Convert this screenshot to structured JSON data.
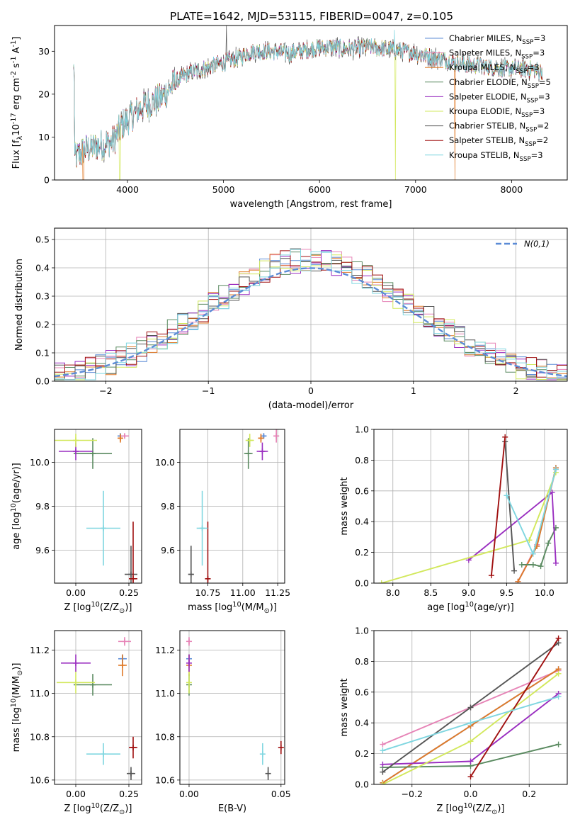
{
  "title": "PLATE=1642, MJD=53115, FIBERID=0047, z=0.105",
  "models": [
    {
      "label": "Chabrier MILES, N<SSP>=3",
      "color": "#5b8bd6"
    },
    {
      "label": "Salpeter MILES, N<SSP>=3",
      "color": "#e683b6"
    },
    {
      "label": "Kroupa MILES, N<SSP>=3",
      "color": "#e07a28"
    },
    {
      "label": "Chabrier ELODIE, N<SSP>=5",
      "color": "#5a8a60"
    },
    {
      "label": "Salpeter ELODIE, N<SSP>=3",
      "color": "#9a2ec0"
    },
    {
      "label": "Kroupa ELODIE, N<SSP>=3",
      "color": "#d2e85c"
    },
    {
      "label": "Chabrier STELIB, N<SSP>=2",
      "color": "#555555"
    },
    {
      "label": "Salpeter STELIB, N<SSP>=2",
      "color": "#a01010"
    },
    {
      "label": "Kroupa STELIB, N<SSP>=3",
      "color": "#7fd6e0"
    }
  ],
  "chart_data": [
    {
      "id": "spectrum",
      "type": "line",
      "xlabel": "wavelength [Angstrom, rest frame]",
      "ylabel": "Flux [f<λ>10<-17> erg cm<-2> s<-1> A<-1>]",
      "xlim": [
        3240,
        8580
      ],
      "ylim": [
        0,
        36
      ],
      "xticks": [
        4000,
        5000,
        6000,
        7000,
        8000
      ],
      "yticks": [
        0,
        10,
        20,
        30
      ],
      "grid": false,
      "legend_position": "top-right",
      "continuum": [
        [
          3450,
          5
        ],
        [
          3550,
          7
        ],
        [
          3700,
          8
        ],
        [
          3850,
          9
        ],
        [
          3950,
          13
        ],
        [
          4050,
          15
        ],
        [
          4150,
          17
        ],
        [
          4250,
          18
        ],
        [
          4350,
          19
        ],
        [
          4500,
          23
        ],
        [
          4650,
          25
        ],
        [
          4800,
          26
        ],
        [
          4950,
          27
        ],
        [
          5100,
          28
        ],
        [
          5200,
          29
        ],
        [
          5300,
          30
        ],
        [
          5500,
          30
        ],
        [
          5700,
          29.5
        ],
        [
          5900,
          30.5
        ],
        [
          6100,
          31
        ],
        [
          6300,
          30.5
        ],
        [
          6500,
          31
        ],
        [
          6700,
          30.5
        ],
        [
          6900,
          30
        ],
        [
          7100,
          29
        ],
        [
          7300,
          28
        ],
        [
          7500,
          27
        ],
        [
          7700,
          26.5
        ],
        [
          7900,
          26
        ],
        [
          8100,
          26
        ],
        [
          8300,
          25.5
        ]
      ],
      "dropouts": [
        [
          3540,
          0
        ],
        [
          3920,
          0
        ],
        [
          6790,
          0
        ],
        [
          7410,
          0
        ]
      ],
      "spikes_up": [
        [
          5030,
          36
        ],
        [
          6780,
          35
        ]
      ]
    },
    {
      "id": "residuals",
      "type": "histogram",
      "xlabel": "(data-model)/error",
      "ylabel": "Normed distribution",
      "xlim": [
        -2.5,
        2.5
      ],
      "ylim": [
        0,
        0.54
      ],
      "xticks": [
        -2,
        -1,
        0,
        1,
        2
      ],
      "yticks": [
        0.0,
        0.1,
        0.2,
        0.3,
        0.4,
        0.5
      ],
      "grid": true,
      "legend_position": "top-right",
      "reference_label": "N(0,1)",
      "reference_color": "#5b8bd6",
      "bin_width": 0.1
    },
    {
      "id": "age-vs-Z",
      "type": "scatter",
      "xlabel": "Z [log<10>(Z/Z<⊙>)]",
      "ylabel": "age  [log<10>(age/yr)]",
      "xlim": [
        -0.1,
        0.31
      ],
      "ylim": [
        9.45,
        10.15
      ],
      "xticks": [
        0.0,
        0.25
      ],
      "yticks": [
        9.6,
        9.8,
        10.0
      ],
      "grid": true,
      "points": [
        {
          "m": 0,
          "x": 0.21,
          "y": 10.12,
          "xe": 0.01,
          "ye": 0.01
        },
        {
          "m": 1,
          "x": 0.23,
          "y": 10.12,
          "xe": 0.02,
          "ye": 0.01
        },
        {
          "m": 2,
          "x": 0.21,
          "y": 10.11,
          "xe": 0.01,
          "ye": 0.02
        },
        {
          "m": 3,
          "x": 0.08,
          "y": 10.04,
          "xe": 0.09,
          "ye": 0.07
        },
        {
          "m": 4,
          "x": 0.0,
          "y": 10.05,
          "xe": 0.08,
          "ye": 0.04
        },
        {
          "m": 5,
          "x": 0.0,
          "y": 10.1,
          "xe": 0.1,
          "ye": 0.03
        },
        {
          "m": 6,
          "x": 0.26,
          "y": 9.49,
          "xe": 0.03,
          "ye": 0.13
        },
        {
          "m": 7,
          "x": 0.27,
          "y": 9.47,
          "xe": 0.02,
          "ye": 0.26
        },
        {
          "m": 8,
          "x": 0.13,
          "y": 9.7,
          "xe": 0.08,
          "ye": 0.17
        }
      ]
    },
    {
      "id": "age-vs-mass",
      "type": "scatter",
      "xlabel": "mass [log<10>(M/M<⊙>)]",
      "ylabel": "",
      "xlim": [
        10.55,
        11.3
      ],
      "ylim": [
        9.45,
        10.15
      ],
      "xticks": [
        10.75,
        11.0,
        11.25
      ],
      "yticks": [
        9.6,
        9.8,
        10.0
      ],
      "grid": true,
      "points": [
        {
          "m": 0,
          "x": 11.15,
          "y": 10.12,
          "xe": 0.02,
          "ye": 0.01
        },
        {
          "m": 1,
          "x": 11.24,
          "y": 10.12,
          "xe": 0.02,
          "ye": 0.03
        },
        {
          "m": 2,
          "x": 11.13,
          "y": 10.11,
          "xe": 0.02,
          "ye": 0.02
        },
        {
          "m": 3,
          "x": 11.04,
          "y": 10.04,
          "xe": 0.03,
          "ye": 0.07
        },
        {
          "m": 4,
          "x": 11.14,
          "y": 10.05,
          "xe": 0.04,
          "ye": 0.04
        },
        {
          "m": 5,
          "x": 11.05,
          "y": 10.1,
          "xe": 0.03,
          "ye": 0.03
        },
        {
          "m": 6,
          "x": 10.63,
          "y": 9.49,
          "xe": 0.02,
          "ye": 0.13
        },
        {
          "m": 7,
          "x": 10.75,
          "y": 9.47,
          "xe": 0.02,
          "ye": 0.26
        },
        {
          "m": 8,
          "x": 10.71,
          "y": 9.7,
          "xe": 0.04,
          "ye": 0.17
        }
      ]
    },
    {
      "id": "massweight-vs-age",
      "type": "line",
      "xlabel": "age  [log<10>(age/yr)]",
      "ylabel": "mass weight",
      "xlim": [
        7.75,
        10.3
      ],
      "ylim": [
        0,
        1
      ],
      "xticks": [
        8.0,
        8.5,
        9.0,
        9.5,
        10.0
      ],
      "yticks": [
        0.0,
        0.2,
        0.4,
        0.6,
        0.8,
        1.0
      ],
      "grid": true,
      "series": [
        {
          "m": 0,
          "x": [
            9.65,
            9.9,
            10.15
          ],
          "y": [
            0.01,
            0.24,
            0.75
          ]
        },
        {
          "m": 1,
          "x": [
            9.65,
            9.9,
            10.15
          ],
          "y": [
            0.01,
            0.25,
            0.74
          ]
        },
        {
          "m": 2,
          "x": [
            9.65,
            9.9,
            10.15
          ],
          "y": [
            0.01,
            0.24,
            0.75
          ]
        },
        {
          "m": 3,
          "x": [
            9.7,
            9.85,
            9.95,
            10.05,
            10.15
          ],
          "y": [
            0.12,
            0.12,
            0.11,
            0.26,
            0.36
          ]
        },
        {
          "m": 4,
          "x": [
            9.0,
            10.1,
            10.15
          ],
          "y": [
            0.15,
            0.59,
            0.13
          ]
        },
        {
          "m": 5,
          "x": [
            7.85,
            9.8,
            10.15
          ],
          "y": [
            0.0,
            0.28,
            0.72
          ]
        },
        {
          "m": 6,
          "x": [
            9.48,
            9.6
          ],
          "y": [
            0.92,
            0.08
          ]
        },
        {
          "m": 7,
          "x": [
            9.3,
            9.48
          ],
          "y": [
            0.05,
            0.95
          ]
        },
        {
          "m": 8,
          "x": [
            9.5,
            9.85,
            10.15
          ],
          "y": [
            0.57,
            0.19,
            0.74
          ]
        }
      ]
    },
    {
      "id": "mass-vs-Z",
      "type": "scatter",
      "xlabel": "Z [log<10>(Z/Z<⊙>)]",
      "ylabel": "mass [log<10>(M/M<⊙>)]",
      "xlim": [
        -0.1,
        0.31
      ],
      "ylim": [
        10.58,
        11.29
      ],
      "xticks": [
        0.0,
        0.25
      ],
      "yticks": [
        10.6,
        10.8,
        11.0,
        11.2
      ],
      "grid": true,
      "points": [
        {
          "m": 0,
          "x": 0.22,
          "y": 11.16,
          "xe": 0.02,
          "ye": 0.02
        },
        {
          "m": 1,
          "x": 0.23,
          "y": 11.24,
          "xe": 0.03,
          "ye": 0.02
        },
        {
          "m": 2,
          "x": 0.22,
          "y": 11.13,
          "xe": 0.02,
          "ye": 0.05
        },
        {
          "m": 3,
          "x": 0.08,
          "y": 11.04,
          "xe": 0.09,
          "ye": 0.05
        },
        {
          "m": 4,
          "x": 0.0,
          "y": 11.14,
          "xe": 0.07,
          "ye": 0.04
        },
        {
          "m": 5,
          "x": 0.0,
          "y": 11.05,
          "xe": 0.09,
          "ye": 0.05
        },
        {
          "m": 6,
          "x": 0.26,
          "y": 10.63,
          "xe": 0.02,
          "ye": 0.03
        },
        {
          "m": 7,
          "x": 0.27,
          "y": 10.75,
          "xe": 0.02,
          "ye": 0.05
        },
        {
          "m": 8,
          "x": 0.13,
          "y": 10.72,
          "xe": 0.08,
          "ye": 0.05
        }
      ]
    },
    {
      "id": "mass-vs-ebv",
      "type": "scatter",
      "xlabel": "E(B-V)",
      "ylabel": "",
      "xlim": [
        -0.005,
        0.052
      ],
      "ylim": [
        10.58,
        11.29
      ],
      "xticks": [
        0.0,
        0.05
      ],
      "yticks": [
        10.6,
        10.8,
        11.0,
        11.2
      ],
      "grid": true,
      "points": [
        {
          "m": 0,
          "x": 0.0,
          "y": 11.16,
          "xe": 0.0,
          "ye": 0.02
        },
        {
          "m": 1,
          "x": 0.0,
          "y": 11.24,
          "xe": 0.0,
          "ye": 0.02
        },
        {
          "m": 2,
          "x": 0.0,
          "y": 11.13,
          "xe": 0.0,
          "ye": 0.05
        },
        {
          "m": 3,
          "x": 0.0,
          "y": 11.04,
          "xe": 0.0,
          "ye": 0.05
        },
        {
          "m": 4,
          "x": 0.0,
          "y": 11.14,
          "xe": 0.0,
          "ye": 0.04
        },
        {
          "m": 5,
          "x": 0.0,
          "y": 11.05,
          "xe": 0.0,
          "ye": 0.05
        },
        {
          "m": 6,
          "x": 0.043,
          "y": 10.63,
          "xe": 0.0,
          "ye": 0.03
        },
        {
          "m": 7,
          "x": 0.05,
          "y": 10.75,
          "xe": 0.0,
          "ye": 0.03
        },
        {
          "m": 8,
          "x": 0.04,
          "y": 10.72,
          "xe": 0.0,
          "ye": 0.05
        }
      ]
    },
    {
      "id": "massweight-vs-Z",
      "type": "line",
      "xlabel": "Z [log<10>(Z/Z<⊙>)]",
      "ylabel": "mass weight",
      "xlim": [
        -0.33,
        0.33
      ],
      "ylim": [
        0,
        1
      ],
      "xticks": [
        -0.2,
        0.0,
        0.2
      ],
      "yticks": [
        0.0,
        0.2,
        0.4,
        0.6,
        0.8,
        1.0
      ],
      "grid": true,
      "series": [
        {
          "m": 0,
          "x": [
            -0.3,
            0.0,
            0.3
          ],
          "y": [
            0.01,
            0.38,
            0.75
          ]
        },
        {
          "m": 1,
          "x": [
            -0.3,
            0.0,
            0.3
          ],
          "y": [
            0.26,
            0.5,
            0.74
          ]
        },
        {
          "m": 2,
          "x": [
            -0.3,
            0.0,
            0.3
          ],
          "y": [
            0.01,
            0.38,
            0.75
          ]
        },
        {
          "m": 3,
          "x": [
            -0.3,
            0.0,
            0.3
          ],
          "y": [
            0.11,
            0.12,
            0.26
          ]
        },
        {
          "m": 4,
          "x": [
            -0.3,
            0.0,
            0.3
          ],
          "y": [
            0.13,
            0.15,
            0.59
          ]
        },
        {
          "m": 5,
          "x": [
            -0.3,
            0.0,
            0.3
          ],
          "y": [
            0.0,
            0.28,
            0.72
          ]
        },
        {
          "m": 6,
          "x": [
            -0.3,
            0.0,
            0.3
          ],
          "y": [
            0.08,
            0.5,
            0.92
          ]
        },
        {
          "m": 7,
          "x": [
            0.0,
            0.3
          ],
          "y": [
            0.05,
            0.95
          ]
        },
        {
          "m": 8,
          "x": [
            -0.3,
            0.0,
            0.3
          ],
          "y": [
            0.22,
            0.4,
            0.57
          ]
        }
      ]
    }
  ]
}
